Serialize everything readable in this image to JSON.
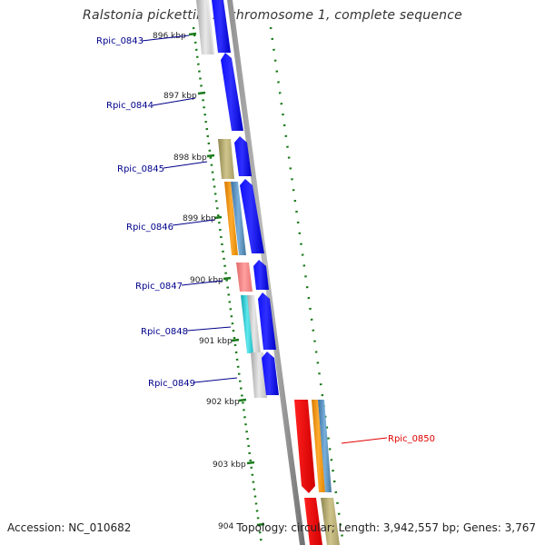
{
  "title": "Ralstonia pickettii 12J chromosome 1, complete sequence",
  "accession": "Accession: NC_010682",
  "summary": "Topology: circular; Length: 3,942,557 bp; Genes: 3,767",
  "ruler_labels": [
    "896 kbp",
    "897 kbp",
    "898 kbp",
    "899 kbp",
    "900 kbp",
    "901 kbp",
    "902 kbp",
    "903 kbp",
    "904"
  ],
  "genes": [
    {
      "id": "Rpic_0843",
      "color": "#00008b"
    },
    {
      "id": "Rpic_0844",
      "color": "#00008b"
    },
    {
      "id": "Rpic_0845",
      "color": "#00008b"
    },
    {
      "id": "Rpic_0846",
      "color": "#00008b"
    },
    {
      "id": "Rpic_0847",
      "color": "#00008b"
    },
    {
      "id": "Rpic_0848",
      "color": "#00008b"
    },
    {
      "id": "Rpic_0849",
      "color": "#00008b"
    },
    {
      "id": "Rpic_0850",
      "color": "#e00000"
    }
  ],
  "colors": {
    "blue_gene": "#0000ee",
    "red_gene": "#ee0000",
    "grey_feature": "#c8c8c8",
    "khaki_feature": "#b5ab72",
    "orange_feature": "#f0900a",
    "steel_feature": "#4f86b8",
    "pink_feature": "#f08080",
    "cyan_feature": "#20c0c8",
    "backbone": "#808080",
    "tick": "#1a7a1a"
  }
}
